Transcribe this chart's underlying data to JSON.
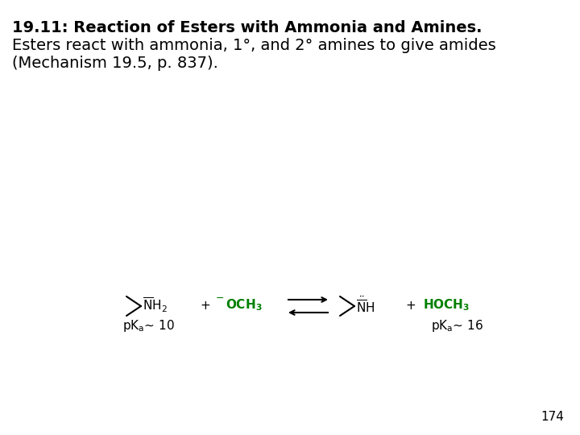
{
  "title_line1": "19.11: Reaction of Esters with Ammonia and Amines.",
  "title_line2": "Esters react with ammonia, 1°, and 2° amines to give amides",
  "title_line3": "(Mechanism 19.5, p. 837).",
  "background_color": "#ffffff",
  "text_color": "#000000",
  "green_color": "#008000",
  "page_number": "174",
  "title1_fontsize": 14,
  "title23_fontsize": 14,
  "chem_fontsize": 11,
  "pka_fontsize": 11,
  "page_fontsize": 11
}
